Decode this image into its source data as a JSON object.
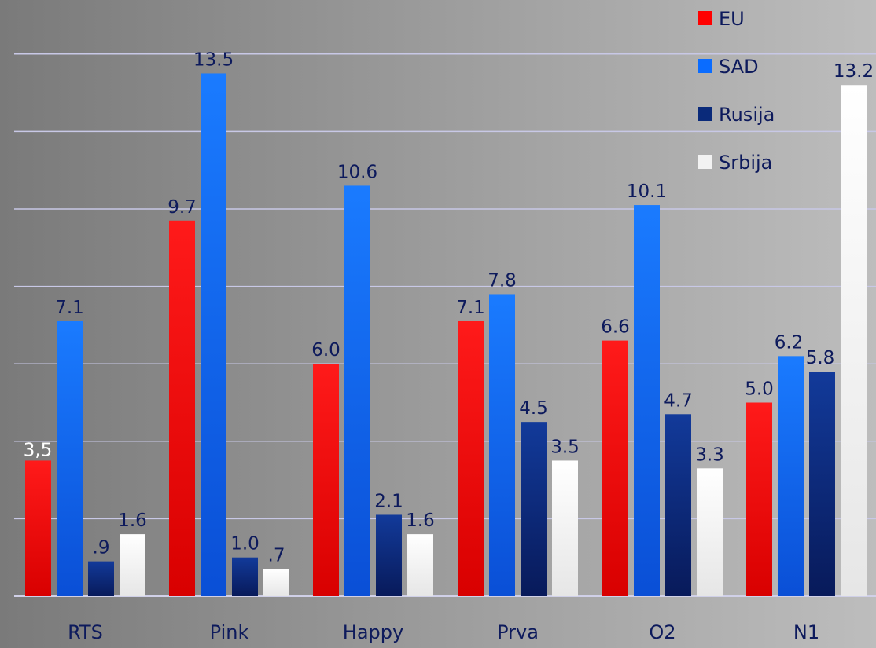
{
  "chart_data": {
    "type": "bar",
    "categories": [
      "RTS",
      "Pink",
      "Happy",
      "Prva",
      "O2",
      "N1"
    ],
    "series": [
      {
        "name": "EU",
        "color": "#ff0000",
        "values": [
          3.5,
          9.7,
          6.0,
          7.1,
          6.6,
          5.0
        ],
        "labels": [
          "3,5",
          "9.7",
          "6.0",
          "7.1",
          "6.6",
          "5.0"
        ]
      },
      {
        "name": "SAD",
        "color": "#0a6cff",
        "values": [
          7.1,
          13.5,
          10.6,
          7.8,
          10.1,
          6.2
        ],
        "labels": [
          "7.1",
          "13.5",
          "10.6",
          "7.8",
          "10.1",
          "6.2"
        ]
      },
      {
        "name": "Rusija",
        "color": "#0a2a7a",
        "values": [
          0.9,
          1.0,
          2.1,
          4.5,
          4.7,
          5.8
        ],
        "labels": [
          ".9",
          "1.0",
          "2.1",
          "4.5",
          "4.7",
          "5.8"
        ]
      },
      {
        "name": "Srbija",
        "color": "#f2f2f2",
        "values": [
          1.6,
          0.7,
          1.6,
          3.5,
          3.3,
          13.2
        ],
        "labels": [
          "1.6",
          ".7",
          "1.6",
          "3.5",
          "3.3",
          "13.2"
        ]
      }
    ],
    "ylim": [
      0,
      14
    ],
    "grid": true,
    "legend": "top-right",
    "title": "",
    "xlabel": "",
    "ylabel": ""
  }
}
